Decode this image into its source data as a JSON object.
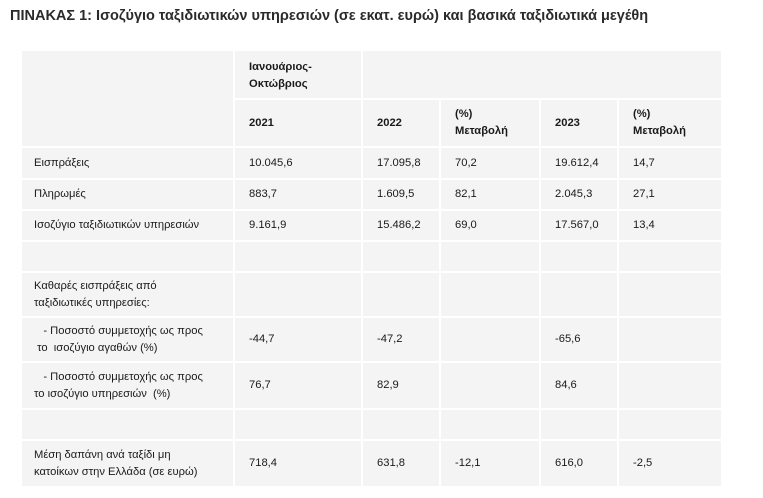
{
  "title": "ΠΙΝΑΚΑΣ 1: Ισοζύγιο ταξιδιωτικών υπηρεσιών (σε εκατ. ευρώ) και βασικά ταξιδιωτικά μεγέθη",
  "table": {
    "period_header_line1": "Ιανουάριος-",
    "period_header_line2": "Οκτώβριος",
    "columns": [
      {
        "line1": "2021",
        "line2": ""
      },
      {
        "line1": "2022",
        "line2": ""
      },
      {
        "line1": "(%)",
        "line2": "Μεταβολή"
      },
      {
        "line1": "2023",
        "line2": ""
      },
      {
        "line1": "(%)",
        "line2": "Μεταβολή"
      }
    ],
    "rows": [
      {
        "label1": "Εισπράξεις",
        "label2": "",
        "values": [
          "10.045,6",
          "17.095,8",
          "70,2",
          "19.612,4",
          "14,7"
        ]
      },
      {
        "label1": "Πληρωμές",
        "label2": "",
        "values": [
          "883,7",
          "1.609,5",
          "82,1",
          "2.045,3",
          "27,1"
        ]
      },
      {
        "label1": "Ισοζύγιο ταξιδιωτικών υπηρεσιών",
        "label2": "",
        "values": [
          "9.161,9",
          "15.486,2",
          "69,0",
          "17.567,0",
          "13,4"
        ]
      },
      {
        "label1": "",
        "label2": "",
        "values": [
          "",
          "",
          "",
          "",
          ""
        ]
      },
      {
        "label1": "Καθαρές εισπράξεις από",
        "label2": "ταξιδιωτικές υπηρεσίες:",
        "values": [
          "",
          "",
          "",
          "",
          ""
        ]
      },
      {
        "label1": "   - Ποσοστό συμμετοχής ως προς",
        "label2": " το  ισοζύγιο αγαθών (%)",
        "values": [
          "-44,7",
          "-47,2",
          "",
          "-65,6",
          ""
        ]
      },
      {
        "label1": "   - Ποσοστό συμμετοχής ως προς",
        "label2": "το ισοζύγιο υπηρεσιών  (%)",
        "values": [
          "76,7",
          "82,9",
          "",
          "84,6",
          ""
        ]
      },
      {
        "label1": "",
        "label2": "",
        "values": [
          "",
          "",
          "",
          "",
          ""
        ]
      },
      {
        "label1": "Μέση δαπάνη ανά ταξίδι μη",
        "label2": "κατοίκων στην Ελλάδα (σε ευρώ)",
        "values": [
          "718,4",
          "631,8",
          "-12,1",
          "616,0",
          "-2,5"
        ]
      }
    ]
  }
}
